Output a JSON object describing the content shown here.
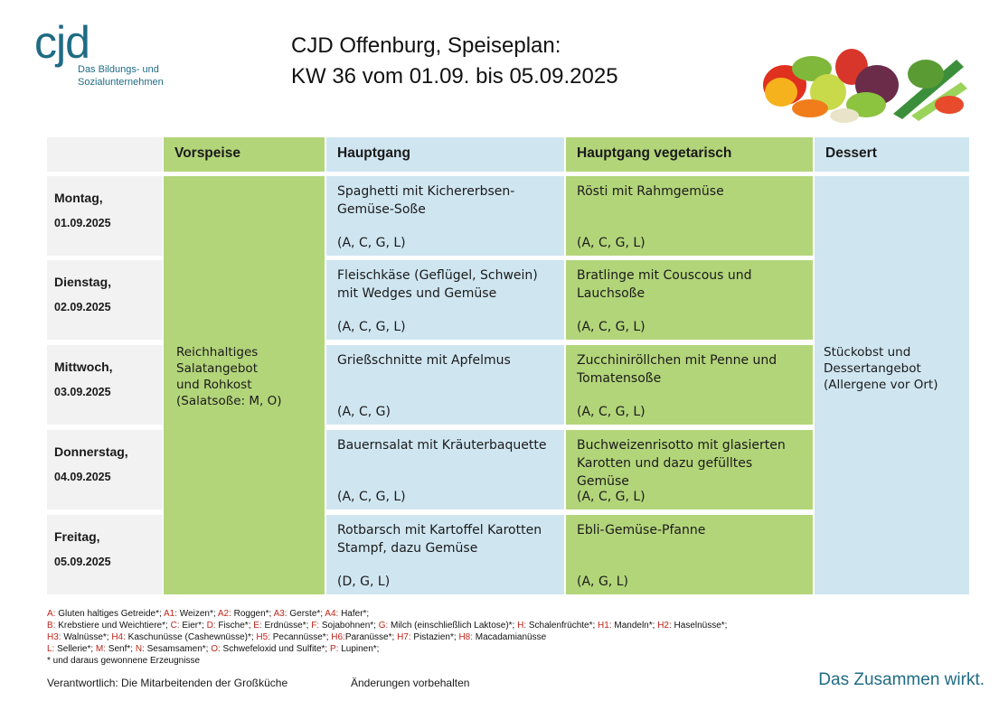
{
  "logo": {
    "mark": "cjd",
    "line1": "Das Bildungs- und",
    "line2": "Sozialunternehmen"
  },
  "title": {
    "line1": "CJD Offenburg, Speiseplan:",
    "line2": "KW 36 vom 01.09. bis 05.09.2025"
  },
  "headers": {
    "vorspeise": "Vorspeise",
    "hauptgang": "Hauptgang",
    "vegetarisch": "Hauptgang vegetarisch",
    "dessert": "Dessert"
  },
  "days": [
    {
      "day": "Montag,",
      "date": "01.09.2025",
      "main": "Spaghetti mit Kichererbsen-Gemüse-Soße",
      "main_allergens": "(A, C, G, L)",
      "veg": "Rösti mit Rahmgemüse",
      "veg_allergens": "(A, C, G, L)"
    },
    {
      "day": "Dienstag,",
      "date": "02.09.2025",
      "main": "Fleischkäse (Geflügel, Schwein) mit Wedges und Gemüse",
      "main_allergens": "(A, C, G, L)",
      "veg": "Bratlinge mit Couscous und Lauchsoße",
      "veg_allergens": "(A, C, G, L)"
    },
    {
      "day": "Mittwoch,",
      "date": "03.09.2025",
      "main": "Grießschnitte mit Apfelmus",
      "main_allergens": "(A, C, G)",
      "veg": "Zucchiniröllchen mit Penne und Tomatensoße",
      "veg_allergens": "(A, C, G, L)"
    },
    {
      "day": "Donnerstag,",
      "date": "04.09.2025",
      "main": "Bauernsalat mit Kräuterbaquette",
      "main_allergens": "(A, C, G, L)",
      "veg": "Buchweizenrisotto mit glasierten Karotten und dazu gefülltes Gemüse",
      "veg_allergens": "(A, C, G, L)"
    },
    {
      "day": "Freitag,",
      "date": "05.09.2025",
      "main": "Rotbarsch mit Kartoffel Karotten Stampf, dazu Gemüse",
      "main_allergens": "(D, G, L)",
      "veg": "Ebli-Gemüse-Pfanne",
      "veg_allergens": "(A, G, L)"
    }
  ],
  "starter": [
    "Reichhaltiges",
    "Salatangebot",
    "und Rohkost",
    "(Salatsoße: M, O)"
  ],
  "dessert": [
    "Stückobst und",
    "Dessertangebot",
    "(Allergene vor Ort)"
  ],
  "legend": [
    [
      [
        "A:",
        " Gluten haltiges Getreide*; "
      ],
      [
        "A1:",
        " Weizen*; "
      ],
      [
        "A2:",
        " Roggen*; "
      ],
      [
        "A3:",
        " Gerste*; "
      ],
      [
        "A4:",
        " Hafer*;"
      ]
    ],
    [
      [
        "B:",
        " Krebstiere und Weichtiere*; "
      ],
      [
        "C:",
        " Eier*; "
      ],
      [
        "D:",
        " Fische*; "
      ],
      [
        "E:",
        " Erdnüsse*; "
      ],
      [
        "F:",
        " Sojabohnen*; "
      ],
      [
        "G:",
        " Milch (einschließlich Laktose)*; "
      ],
      [
        "H:",
        " Schalenfrüchte*; "
      ],
      [
        "H1:",
        " Mandeln*; "
      ],
      [
        "H2:",
        " Haselnüsse*;"
      ]
    ],
    [
      [
        "H3:",
        " Walnüsse*; "
      ],
      [
        "H4:",
        " Kaschunüsse (Cashewnüsse)*; "
      ],
      [
        "H5:",
        " Pecannüsse*; "
      ],
      [
        "H6:",
        "Paranüsse*; "
      ],
      [
        "H7:",
        " Pistazien*; "
      ],
      [
        "H8:",
        " Macadamianüsse"
      ]
    ],
    [
      [
        "L:",
        " Sellerie*; "
      ],
      [
        "M:",
        " Senf*; "
      ],
      [
        "N:",
        " Sesamsamen*; "
      ],
      [
        "O:",
        " Schwefeloxid und Sulfite*; "
      ],
      [
        "P:",
        " Lupinen*;"
      ]
    ],
    [
      [
        "",
        "* und daraus gewonnene Erzeugnisse"
      ]
    ]
  ],
  "footer": {
    "responsible": "Verantwortlich: Die Mitarbeitenden der Großküche",
    "changes": "Änderungen vorbehalten",
    "slogan": "Das Zusammen wirkt."
  },
  "colors": {
    "green": "#b3d57a",
    "blue": "#cfe6f1",
    "brand": "#1f6b84",
    "allergen_code": "#c0251a"
  }
}
